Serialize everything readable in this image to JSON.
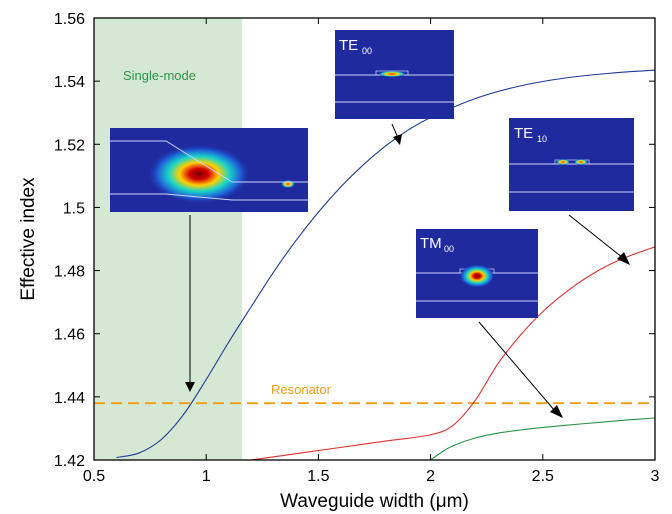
{
  "chart_data": {
    "type": "line",
    "title": "",
    "xlabel": "Waveguide width (μm)",
    "ylabel": "Effective index",
    "xlim": [
      0.5,
      3
    ],
    "ylim": [
      1.42,
      1.56
    ],
    "xticks": [
      "0.5",
      "1",
      "1.5",
      "2",
      "2.5",
      "3"
    ],
    "yticks": [
      "1.42",
      "1.44",
      "1.46",
      "1.48",
      "1.5",
      "1.52",
      "1.54",
      "1.56"
    ],
    "grid": false,
    "legend": "none",
    "shaded_region": {
      "label": "Single-mode",
      "x": [
        0.5,
        1.16
      ],
      "color": "#d5e8d4"
    },
    "reference_line": {
      "label": "Resonator",
      "y": 1.438,
      "style": "dashed",
      "color": "#f39c12"
    },
    "series": [
      {
        "color": "#1f3a93",
        "x": [
          0.6,
          0.7,
          0.8,
          0.9,
          1.0,
          1.1,
          1.2,
          1.3,
          1.4,
          1.5,
          1.6,
          1.7,
          1.8,
          1.9,
          2.0,
          2.2,
          2.4,
          2.6,
          2.8,
          3.0
        ],
        "y": [
          1.4208,
          1.4222,
          1.4265,
          1.4345,
          1.4455,
          1.4573,
          1.4685,
          1.4795,
          1.4895,
          1.4985,
          1.5065,
          1.5135,
          1.5195,
          1.5245,
          1.5285,
          1.5345,
          1.5385,
          1.541,
          1.5425,
          1.5435
        ]
      },
      {
        "color": "#e03131",
        "x": [
          1.2,
          1.4,
          1.6,
          1.8,
          2.0,
          2.1,
          2.2,
          2.3,
          2.4,
          2.5,
          2.6,
          2.7,
          2.8,
          2.9,
          3.0
        ],
        "y": [
          1.42,
          1.422,
          1.424,
          1.426,
          1.428,
          1.431,
          1.439,
          1.4505,
          1.4595,
          1.467,
          1.473,
          1.478,
          1.482,
          1.485,
          1.4875
        ]
      },
      {
        "color": "#2b9348",
        "x": [
          2.0,
          2.05,
          2.1,
          2.2,
          2.3,
          2.4,
          2.5,
          2.6,
          2.7,
          2.8,
          2.9,
          3.0
        ],
        "y": [
          1.42,
          1.4225,
          1.4245,
          1.427,
          1.4285,
          1.4295,
          1.4303,
          1.431,
          1.4316,
          1.4322,
          1.4328,
          1.4333
        ]
      }
    ],
    "annotations": [
      {
        "text": "Single-mode",
        "color": "#2b9348"
      },
      {
        "text": "Resonator",
        "color": "#f39c12"
      }
    ],
    "insets": [
      {
        "label": "TE",
        "subscript": "00",
        "mode": "TE00"
      },
      {
        "label": "TE",
        "subscript": "10",
        "mode": "TE10"
      },
      {
        "label": "TM",
        "subscript": "00",
        "mode": "TM00"
      },
      {
        "label": "",
        "subscript": "",
        "mode": "coupler"
      }
    ]
  }
}
